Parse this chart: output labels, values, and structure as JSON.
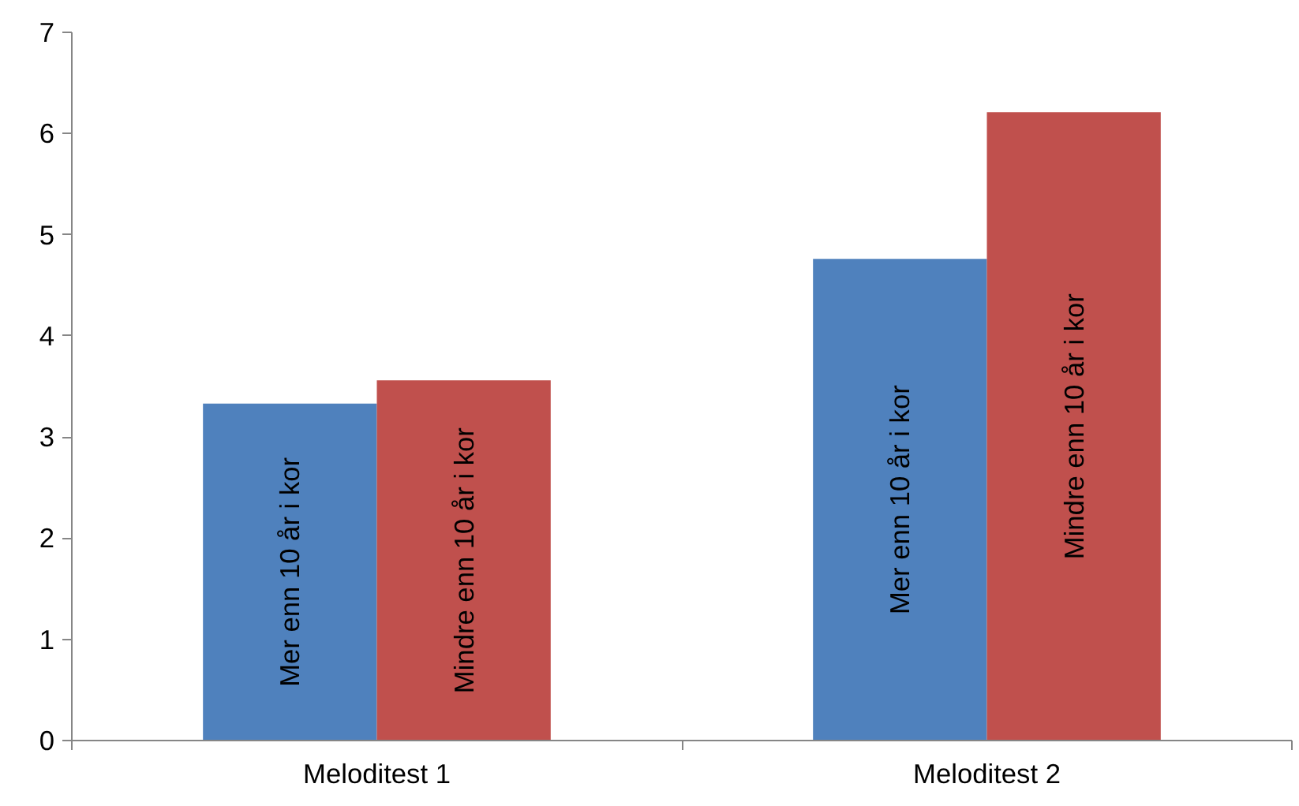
{
  "chart_data": {
    "type": "bar",
    "categories": [
      "Meloditest 1",
      "Meloditest 2"
    ],
    "series": [
      {
        "name": "Mer enn 10 år i kor",
        "color": "#4f81bd",
        "values": [
          3.33,
          4.76
        ]
      },
      {
        "name": "Mindre enn 10 år i kor",
        "color": "#c0504d",
        "values": [
          3.56,
          6.21
        ]
      }
    ],
    "ylim": [
      0,
      7
    ],
    "yticks": [
      0,
      1,
      2,
      3,
      4,
      5,
      6,
      7
    ],
    "grid": false
  }
}
